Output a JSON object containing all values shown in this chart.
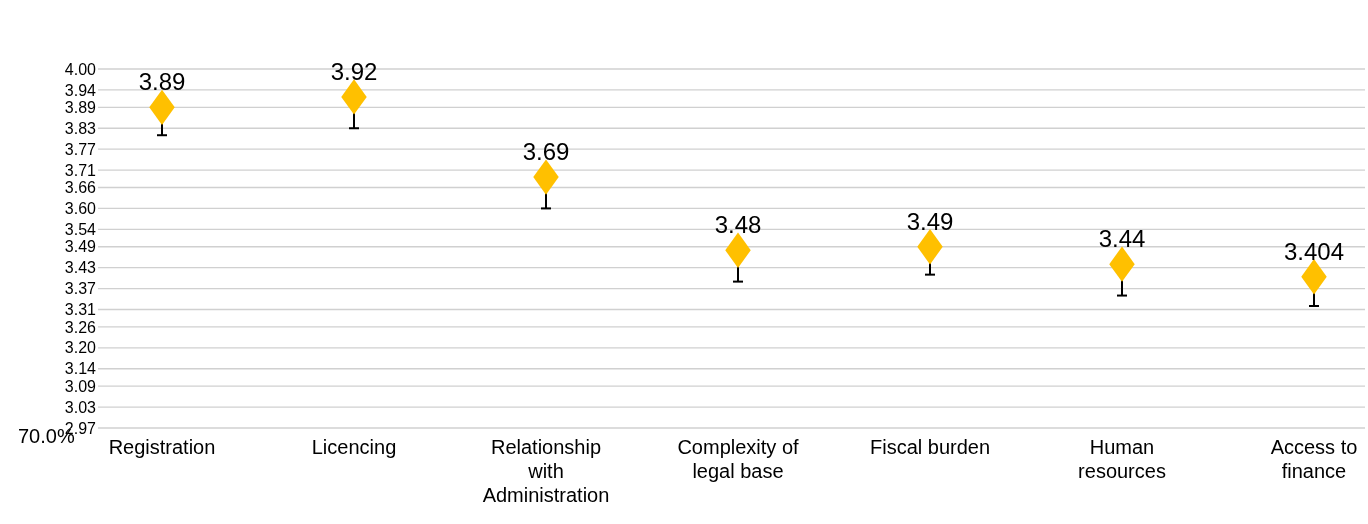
{
  "chart_data": {
    "type": "scatter",
    "categories": [
      "Registration",
      "Licencing",
      "Relationship with Administration",
      "Complexity of legal base",
      "Fiscal burden",
      "Human resources",
      "Access to finance"
    ],
    "values": [
      3.89,
      3.92,
      3.69,
      3.48,
      3.49,
      3.44,
      3.404
    ],
    "errors": [
      [
        3.81,
        3.89
      ],
      [
        3.83,
        3.92
      ],
      [
        3.6,
        3.69
      ],
      [
        3.39,
        3.48
      ],
      [
        3.41,
        3.49
      ],
      [
        3.35,
        3.44
      ],
      [
        3.32,
        3.404
      ]
    ],
    "color": "#ffc000",
    "marker": "diamond",
    "data_labels": true,
    "grid": "y",
    "ylim": [
      2.97,
      4.0
    ],
    "yticks": [
      {
        "value": 2.97,
        "label": "2.97"
      },
      {
        "value": 3.03,
        "label": "3.03"
      },
      {
        "value": 3.09,
        "label": "3.09"
      },
      {
        "value": 3.14,
        "label": "3.14"
      },
      {
        "value": 3.2,
        "label": "3.20"
      },
      {
        "value": 3.26,
        "label": "3.26"
      },
      {
        "value": 3.31,
        "label": "3.31"
      },
      {
        "value": 3.37,
        "label": "3.37"
      },
      {
        "value": 3.43,
        "label": "3.43"
      },
      {
        "value": 3.49,
        "label": "3.49"
      },
      {
        "value": 3.54,
        "label": "3.54"
      },
      {
        "value": 3.6,
        "label": "3.60"
      },
      {
        "value": 3.66,
        "label": "3.66"
      },
      {
        "value": 3.71,
        "label": "3.71"
      },
      {
        "value": 3.77,
        "label": "3.77"
      },
      {
        "value": 3.83,
        "label": "3.83"
      },
      {
        "value": 3.89,
        "label": "3.89"
      },
      {
        "value": 3.94,
        "label": "3.94"
      },
      {
        "value": 4.0,
        "label": "4.00"
      }
    ],
    "annotations": [
      "70.0%"
    ]
  }
}
